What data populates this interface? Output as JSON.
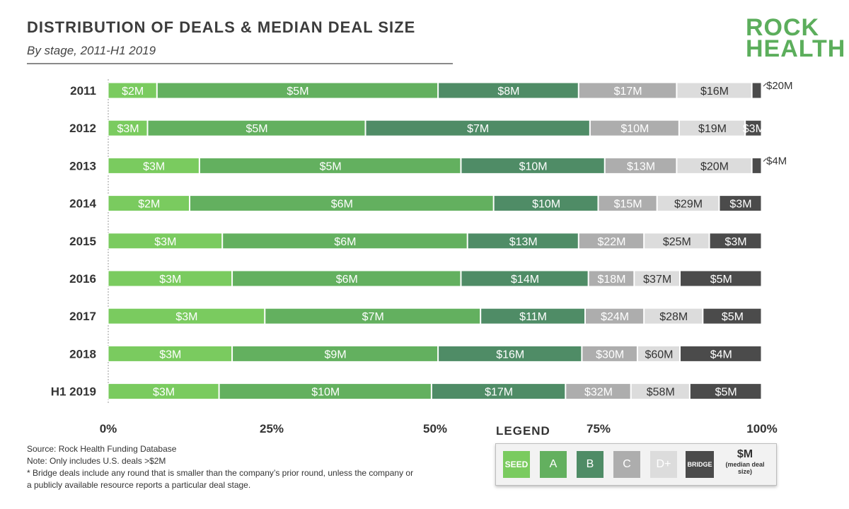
{
  "header": {
    "title": "DISTRIBUTION OF DEALS & MEDIAN DEAL SIZE",
    "subtitle": "By stage, 2011-H1 2019"
  },
  "logo": {
    "line1": "ROCK",
    "line2": "HEALTH"
  },
  "colors": {
    "seed": "#7acb5f",
    "a": "#63b05f",
    "b": "#4f8c66",
    "c": "#adadad",
    "dplus": "#dcdcdc",
    "bridge": "#4b4b4b"
  },
  "chart_data": {
    "type": "bar",
    "orientation": "horizontal",
    "stacked": true,
    "normalized": true,
    "categories": [
      "2011",
      "2012",
      "2013",
      "2014",
      "2015",
      "2016",
      "2017",
      "2018",
      "H1 2019"
    ],
    "xlim": [
      0,
      100
    ],
    "xticks": [
      "0%",
      "25%",
      "50%",
      "75%",
      "100%"
    ],
    "series": [
      {
        "name": "SEED",
        "color_key": "seed",
        "values": [
          7.5,
          6,
          14,
          12.5,
          17.5,
          19,
          24,
          19,
          17
        ],
        "labels": [
          "$2M",
          "$3M",
          "$3M",
          "$2M",
          "$3M",
          "$3M",
          "$3M",
          "$3M",
          "$3M"
        ]
      },
      {
        "name": "A",
        "color_key": "a",
        "values": [
          43,
          33,
          40,
          46.5,
          37.5,
          35,
          33,
          31.5,
          32.5
        ],
        "labels": [
          "$5M",
          "$5M",
          "$5M",
          "$6M",
          "$6M",
          "$6M",
          "$7M",
          "$9M",
          "$10M"
        ]
      },
      {
        "name": "B",
        "color_key": "b",
        "values": [
          21.5,
          34,
          22,
          16,
          17,
          19.5,
          16,
          22,
          20.5
        ],
        "labels": [
          "$8M",
          "$7M",
          "$10M",
          "$10M",
          "$13M",
          "$14M",
          "$11M",
          "$16M",
          "$17M"
        ]
      },
      {
        "name": "C",
        "color_key": "c",
        "values": [
          15,
          13.5,
          11,
          9,
          10,
          7,
          9,
          8.5,
          10
        ],
        "labels": [
          "$17M",
          "$10M",
          "$13M",
          "$15M",
          "$22M",
          "$18M",
          "$24M",
          "$30M",
          "$32M"
        ]
      },
      {
        "name": "D+",
        "color_key": "dplus",
        "values": [
          11.5,
          10,
          11.5,
          9.5,
          10,
          7,
          9,
          6.5,
          9
        ],
        "labels": [
          "$16M",
          "$19M",
          "$20M",
          "$29M",
          "$25M",
          "$37M",
          "$28M",
          "$60M",
          "$58M"
        ]
      },
      {
        "name": "BRIDGE",
        "color_key": "bridge",
        "values": [
          1.5,
          2.5,
          1.5,
          6.5,
          8,
          12.5,
          9,
          12.5,
          11
        ],
        "labels": [
          "$20M",
          "$3M",
          "$4M",
          "$3M",
          "$3M",
          "$5M",
          "$5M",
          "$4M",
          "$5M"
        ]
      }
    ]
  },
  "notes": {
    "source": "Source: Rock Health Funding Database",
    "note": "Note: Only includes U.S. deals >$2M",
    "bridge_line1": "* Bridge deals include any round that is smaller than the company’s prior round, unless the company or",
    "bridge_line2": "a publicly available resource reports a particular deal stage."
  },
  "legend": {
    "title": "LEGEND",
    "items": [
      {
        "label": "SEED",
        "color_key": "seed"
      },
      {
        "label": "A",
        "color_key": "a"
      },
      {
        "label": "B",
        "color_key": "b"
      },
      {
        "label": "C",
        "color_key": "c"
      },
      {
        "label": "D+",
        "color_key": "dplus"
      },
      {
        "label": "BRIDGE",
        "color_key": "bridge"
      }
    ],
    "median_big": "$M",
    "median_small1": "(median deal",
    "median_small2": "size)"
  }
}
